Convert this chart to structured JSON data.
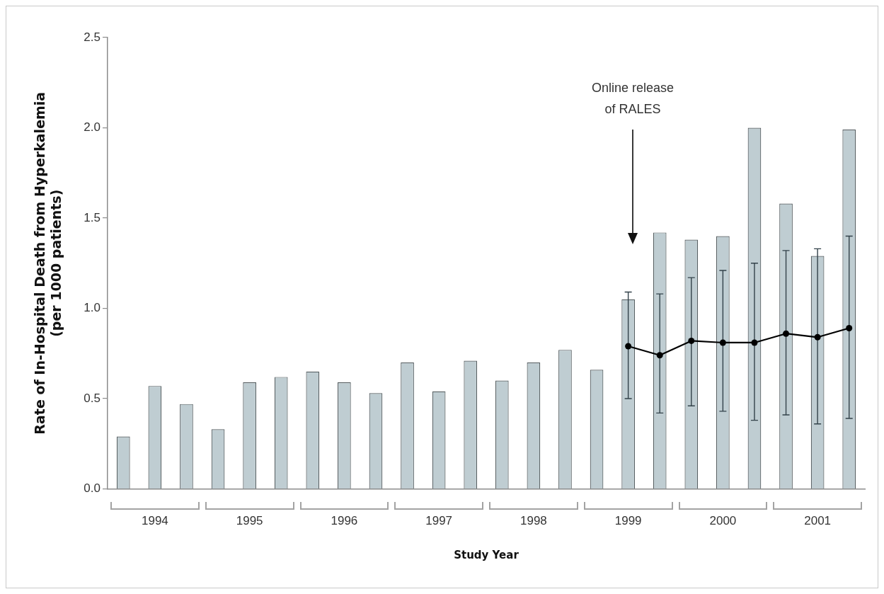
{
  "chart_data": {
    "type": "bar",
    "xlabel": "Study Year",
    "ylabel": "Rate of In-Hospital Death from Hyperkalemia (per 1000 patients)",
    "categories": [
      null,
      "1994",
      null,
      null,
      "1995",
      null,
      null,
      "1996",
      null,
      null,
      "1997",
      null,
      null,
      "1998",
      null,
      null,
      "1999",
      null,
      null,
      "2000",
      null,
      null,
      "2001",
      null
    ],
    "series": [
      {
        "color": "#bfcdd2",
        "values": [
          0.29,
          0.57,
          0.47,
          0.33,
          0.59,
          0.62,
          0.65,
          0.59,
          0.53,
          0.7,
          0.54,
          0.71,
          0.6,
          0.7,
          0.77,
          0.66,
          1.05,
          1.42,
          1.38,
          1.4,
          2.0,
          1.58,
          1.29,
          1.99
        ]
      },
      {
        "type": "line",
        "color": "#000000",
        "values": [
          null,
          null,
          null,
          null,
          null,
          null,
          null,
          null,
          null,
          null,
          null,
          null,
          null,
          null,
          null,
          null,
          0.79,
          0.74,
          0.82,
          0.81,
          0.81,
          0.86,
          0.84,
          0.89
        ],
        "errors": [
          null,
          null,
          null,
          null,
          null,
          null,
          null,
          null,
          null,
          null,
          null,
          null,
          null,
          null,
          null,
          null,
          [
            0.5,
            1.09
          ],
          [
            0.42,
            1.08
          ],
          [
            0.46,
            1.17
          ],
          [
            0.43,
            1.21
          ],
          [
            0.38,
            1.25
          ],
          [
            0.41,
            1.32
          ],
          [
            0.36,
            1.33
          ],
          [
            0.39,
            1.4
          ]
        ]
      }
    ],
    "marker": "circle",
    "ylim": [
      0,
      2.5
    ],
    "yticks": [
      {
        "value": 0,
        "label": "0.0"
      },
      0.5,
      {
        "value": 1,
        "label": "1.0"
      },
      1.5,
      {
        "value": 2,
        "label": "2.0"
      },
      2.5
    ],
    "grid": false,
    "legend": false,
    "annotations": [
      "Online release of RALES"
    ]
  }
}
